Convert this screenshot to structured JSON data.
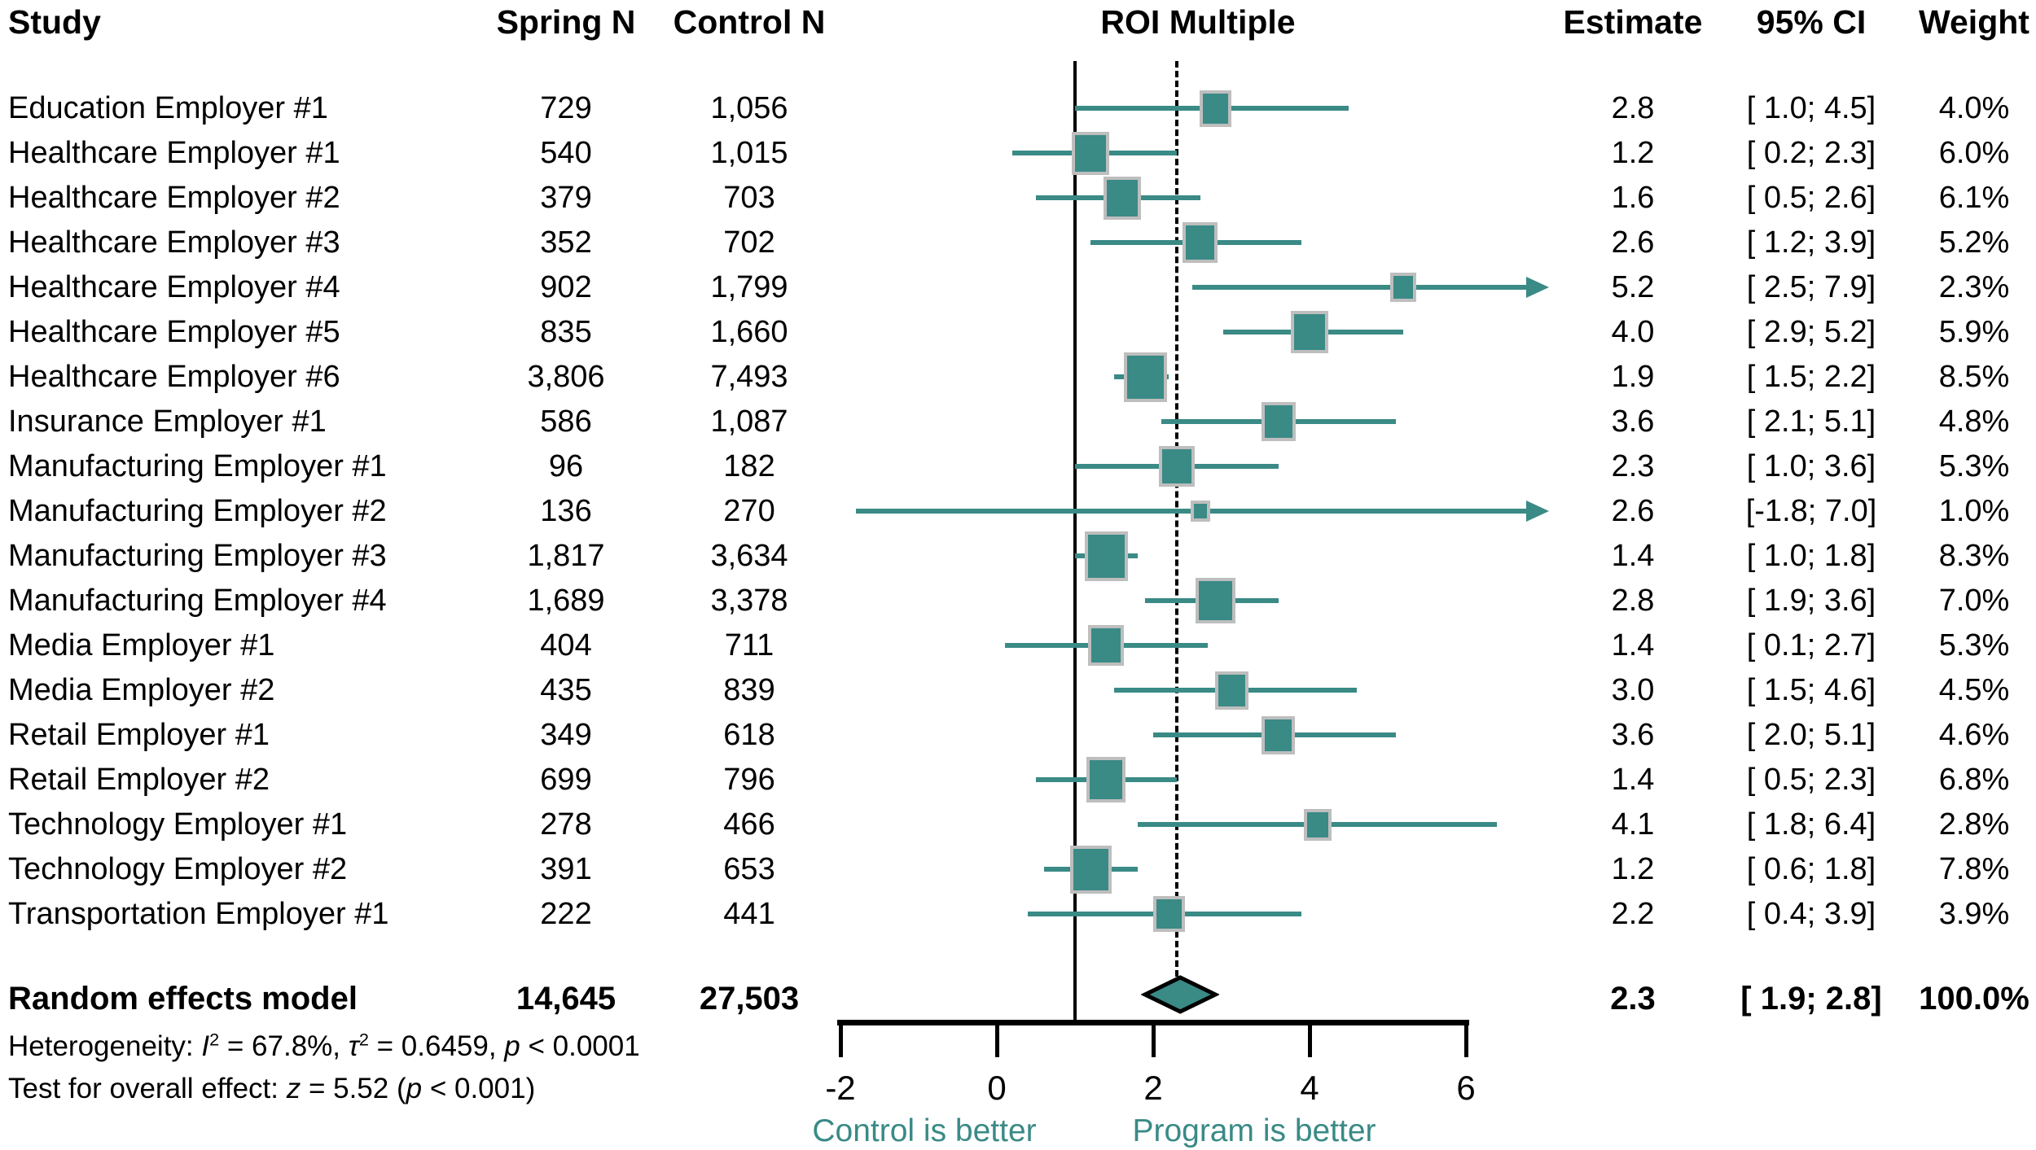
{
  "header": {
    "study": "Study",
    "spring_n": "Spring N",
    "control_n": "Control N",
    "roi": "ROI Multiple",
    "estimate": "Estimate",
    "ci": "95% CI",
    "weight": "Weight"
  },
  "colors": {
    "teal": "#3A8A86",
    "square_border": "#BEBEBE",
    "black": "#000000"
  },
  "stats": {
    "heterogeneity": [
      {
        "t": "Heterogeneity: "
      },
      {
        "t": "I",
        "i": true
      },
      {
        "t": "2",
        "sup": true
      },
      {
        "t": " = 67.8%, "
      },
      {
        "t": "τ",
        "i": true
      },
      {
        "t": "2",
        "sup": true
      },
      {
        "t": " = 0.6459, "
      },
      {
        "t": "p",
        "i": true
      },
      {
        "t": " < 0.0001"
      }
    ],
    "overall_test": [
      {
        "t": "Test for overall effect: "
      },
      {
        "t": "z",
        "i": true
      },
      {
        "t": " = 5.52 ("
      },
      {
        "t": "p",
        "i": true
      },
      {
        "t": " < 0.001)"
      }
    ]
  },
  "chart_data": {
    "type": "scatter",
    "subtype": "forest-plot",
    "title": "ROI Multiple",
    "xlim": [
      -2,
      7
    ],
    "ticks": [
      -2,
      0,
      2,
      4,
      6
    ],
    "tick_labels": [
      "-2",
      "0",
      "2",
      "4",
      "6"
    ],
    "reference_line_solid": 1.0,
    "reference_line_dashed": 2.3,
    "clip_max": 7.0,
    "legend_position": "none",
    "grid": false,
    "captions": {
      "left": "Control is better",
      "right": "Program is better"
    },
    "rows": [
      {
        "name": "Education Employer #1",
        "spring_n": "729",
        "control_n": "1,056",
        "estimate": 2.8,
        "estimate_text": "2.8",
        "ci_low": 1.0,
        "ci_high": 4.5,
        "ci_text": "[ 1.0; 4.5]",
        "weight": 4.0,
        "weight_text": "4.0%",
        "clip_high": false
      },
      {
        "name": "Healthcare Employer #1",
        "spring_n": "540",
        "control_n": "1,015",
        "estimate": 1.2,
        "estimate_text": "1.2",
        "ci_low": 0.2,
        "ci_high": 2.3,
        "ci_text": "[ 0.2; 2.3]",
        "weight": 6.0,
        "weight_text": "6.0%",
        "clip_high": false
      },
      {
        "name": "Healthcare Employer #2",
        "spring_n": "379",
        "control_n": "703",
        "estimate": 1.6,
        "estimate_text": "1.6",
        "ci_low": 0.5,
        "ci_high": 2.6,
        "ci_text": "[ 0.5; 2.6]",
        "weight": 6.1,
        "weight_text": "6.1%",
        "clip_high": false
      },
      {
        "name": "Healthcare Employer #3",
        "spring_n": "352",
        "control_n": "702",
        "estimate": 2.6,
        "estimate_text": "2.6",
        "ci_low": 1.2,
        "ci_high": 3.9,
        "ci_text": "[ 1.2; 3.9]",
        "weight": 5.2,
        "weight_text": "5.2%",
        "clip_high": false
      },
      {
        "name": "Healthcare Employer #4",
        "spring_n": "902",
        "control_n": "1,799",
        "estimate": 5.2,
        "estimate_text": "5.2",
        "ci_low": 2.5,
        "ci_high": 7.9,
        "ci_text": "[ 2.5; 7.9]",
        "weight": 2.3,
        "weight_text": "2.3%",
        "clip_high": true
      },
      {
        "name": "Healthcare Employer #5",
        "spring_n": "835",
        "control_n": "1,660",
        "estimate": 4.0,
        "estimate_text": "4.0",
        "ci_low": 2.9,
        "ci_high": 5.2,
        "ci_text": "[ 2.9; 5.2]",
        "weight": 5.9,
        "weight_text": "5.9%",
        "clip_high": false
      },
      {
        "name": "Healthcare Employer #6",
        "spring_n": "3,806",
        "control_n": "7,493",
        "estimate": 1.9,
        "estimate_text": "1.9",
        "ci_low": 1.5,
        "ci_high": 2.2,
        "ci_text": "[ 1.5; 2.2]",
        "weight": 8.5,
        "weight_text": "8.5%",
        "clip_high": false
      },
      {
        "name": "Insurance Employer #1",
        "spring_n": "586",
        "control_n": "1,087",
        "estimate": 3.6,
        "estimate_text": "3.6",
        "ci_low": 2.1,
        "ci_high": 5.1,
        "ci_text": "[ 2.1; 5.1]",
        "weight": 4.8,
        "weight_text": "4.8%",
        "clip_high": false
      },
      {
        "name": "Manufacturing Employer #1",
        "spring_n": "96",
        "control_n": "182",
        "estimate": 2.3,
        "estimate_text": "2.3",
        "ci_low": 1.0,
        "ci_high": 3.6,
        "ci_text": "[ 1.0; 3.6]",
        "weight": 5.3,
        "weight_text": "5.3%",
        "clip_high": false
      },
      {
        "name": "Manufacturing Employer #2",
        "spring_n": "136",
        "control_n": "270",
        "estimate": 2.6,
        "estimate_text": "2.6",
        "ci_low": -1.8,
        "ci_high": 7.0,
        "ci_text": "[-1.8; 7.0]",
        "weight": 1.0,
        "weight_text": "1.0%",
        "clip_high": true
      },
      {
        "name": "Manufacturing Employer #3",
        "spring_n": "1,817",
        "control_n": "3,634",
        "estimate": 1.4,
        "estimate_text": "1.4",
        "ci_low": 1.0,
        "ci_high": 1.8,
        "ci_text": "[ 1.0; 1.8]",
        "weight": 8.3,
        "weight_text": "8.3%",
        "clip_high": false
      },
      {
        "name": "Manufacturing Employer #4",
        "spring_n": "1,689",
        "control_n": "3,378",
        "estimate": 2.8,
        "estimate_text": "2.8",
        "ci_low": 1.9,
        "ci_high": 3.6,
        "ci_text": "[ 1.9; 3.6]",
        "weight": 7.0,
        "weight_text": "7.0%",
        "clip_high": false
      },
      {
        "name": "Media Employer #1",
        "spring_n": "404",
        "control_n": "711",
        "estimate": 1.4,
        "estimate_text": "1.4",
        "ci_low": 0.1,
        "ci_high": 2.7,
        "ci_text": "[ 0.1; 2.7]",
        "weight": 5.3,
        "weight_text": "5.3%",
        "clip_high": false
      },
      {
        "name": "Media Employer #2",
        "spring_n": "435",
        "control_n": "839",
        "estimate": 3.0,
        "estimate_text": "3.0",
        "ci_low": 1.5,
        "ci_high": 4.6,
        "ci_text": "[ 1.5; 4.6]",
        "weight": 4.5,
        "weight_text": "4.5%",
        "clip_high": false
      },
      {
        "name": "Retail Employer #1",
        "spring_n": "349",
        "control_n": "618",
        "estimate": 3.6,
        "estimate_text": "3.6",
        "ci_low": 2.0,
        "ci_high": 5.1,
        "ci_text": "[ 2.0; 5.1]",
        "weight": 4.6,
        "weight_text": "4.6%",
        "clip_high": false
      },
      {
        "name": "Retail Employer #2",
        "spring_n": "699",
        "control_n": "796",
        "estimate": 1.4,
        "estimate_text": "1.4",
        "ci_low": 0.5,
        "ci_high": 2.3,
        "ci_text": "[ 0.5; 2.3]",
        "weight": 6.8,
        "weight_text": "6.8%",
        "clip_high": false
      },
      {
        "name": "Technology Employer #1",
        "spring_n": "278",
        "control_n": "466",
        "estimate": 4.1,
        "estimate_text": "4.1",
        "ci_low": 1.8,
        "ci_high": 6.4,
        "ci_text": "[ 1.8; 6.4]",
        "weight": 2.8,
        "weight_text": "2.8%",
        "clip_high": false
      },
      {
        "name": "Technology Employer #2",
        "spring_n": "391",
        "control_n": "653",
        "estimate": 1.2,
        "estimate_text": "1.2",
        "ci_low": 0.6,
        "ci_high": 1.8,
        "ci_text": "[ 0.6; 1.8]",
        "weight": 7.8,
        "weight_text": "7.8%",
        "clip_high": false
      },
      {
        "name": "Transportation Employer #1",
        "spring_n": "222",
        "control_n": "441",
        "estimate": 2.2,
        "estimate_text": "2.2",
        "ci_low": 0.4,
        "ci_high": 3.9,
        "ci_text": "[ 0.4; 3.9]",
        "weight": 3.9,
        "weight_text": "3.9%",
        "clip_high": false
      }
    ],
    "summary": {
      "name": "Random effects model",
      "spring_n": "14,645",
      "control_n": "27,503",
      "estimate": 2.3,
      "estimate_text": "2.3",
      "ci_low": 1.9,
      "ci_high": 2.8,
      "ci_text": "[ 1.9; 2.8]",
      "weight_text": "100.0%"
    }
  }
}
